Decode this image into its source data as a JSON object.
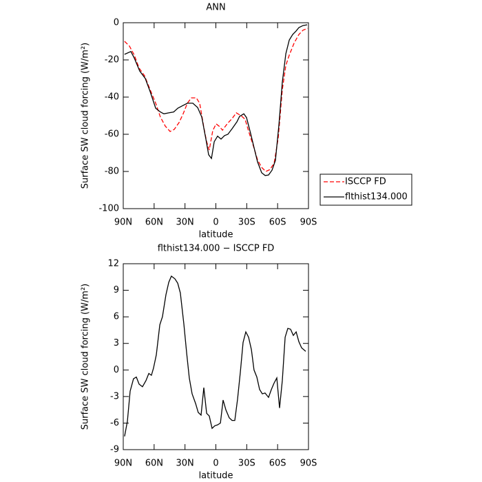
{
  "chart_data": [
    {
      "type": "line",
      "title": "ANN",
      "xlabel": "latitude",
      "ylabel": "Surface SW cloud forcing (W/m²)",
      "xlim": [
        90,
        -90
      ],
      "xticks": [
        {
          "value": 90,
          "label": "90N"
        },
        {
          "value": 60,
          "label": "60N"
        },
        {
          "value": 30,
          "label": "30N"
        },
        0,
        {
          "value": -30,
          "label": "30S"
        },
        {
          "value": -60,
          "label": "60S"
        },
        {
          "value": -90,
          "label": "90S"
        }
      ],
      "ylim": [
        -100,
        0
      ],
      "yticks": [
        -100,
        -80,
        -60,
        -40,
        -20,
        0
      ],
      "legend": "right",
      "series": [
        {
          "name": "ISCCP FD",
          "color": "#ff0000",
          "dashed": true,
          "x": [
            88.7,
            84,
            79.3,
            74.6,
            69.3,
            63.9,
            58.5,
            53.9,
            49.2,
            44.5,
            40.5,
            35.8,
            31.8,
            27.7,
            23.8,
            19.1,
            15.7,
            11.7,
            9,
            6.4,
            3,
            -0.3,
            -3.7,
            -6.4,
            -11,
            -15.8,
            -19.9,
            -24.4,
            -28.4,
            -32.5,
            -36.5,
            -40.5,
            -44.5,
            -48.5,
            -52.5,
            -56.6,
            -60.6,
            -64.6,
            -68,
            -71.3,
            -76,
            -80.7,
            -84.7,
            -89.3
          ],
          "values": [
            -10,
            -12.6,
            -17.4,
            -24.4,
            -28.5,
            -36,
            -43.3,
            -50.7,
            -55.6,
            -58.5,
            -57.4,
            -53.7,
            -49,
            -43.3,
            -40.4,
            -40.4,
            -43.3,
            -56.3,
            -64,
            -68.5,
            -58,
            -54.4,
            -55.9,
            -57.8,
            -54.4,
            -51.5,
            -48.5,
            -50,
            -51.9,
            -59.6,
            -66.3,
            -73.7,
            -77.8,
            -80,
            -79,
            -75.6,
            -61.9,
            -36,
            -23,
            -17.4,
            -11,
            -6.3,
            -4,
            -3
          ]
        },
        {
          "name": "flthist134.000",
          "color": "#000000",
          "dashed": false,
          "x": [
            88.7,
            82.6,
            79.3,
            74,
            68.6,
            63.9,
            58.5,
            53.9,
            50.5,
            45.8,
            41,
            37,
            31.8,
            27.7,
            22.4,
            17.7,
            13.7,
            9.7,
            7,
            4.3,
            1.6,
            -1.7,
            -5,
            -8.4,
            -11.7,
            -15.8,
            -20.5,
            -23,
            -27.2,
            -29.8,
            -33.8,
            -37.2,
            -40.5,
            -44.5,
            -47.9,
            -51.2,
            -54.6,
            -57.9,
            -61.3,
            -64.6,
            -68,
            -71.3,
            -74.7,
            -78,
            -80.7,
            -84.7,
            -88.7
          ],
          "values": [
            -17,
            -15.5,
            -19,
            -26,
            -30,
            -37,
            -46,
            -48,
            -49,
            -48.5,
            -48,
            -46,
            -44.5,
            -43.3,
            -43.3,
            -45.6,
            -50.7,
            -62.6,
            -71,
            -73,
            -64,
            -61,
            -62.6,
            -60.7,
            -60,
            -57,
            -53.3,
            -50.4,
            -49,
            -51,
            -59.6,
            -67.4,
            -74.8,
            -80.7,
            -82.2,
            -81.9,
            -79.3,
            -74,
            -54.8,
            -32,
            -16.7,
            -9.3,
            -6.3,
            -4.4,
            -2.6,
            -1.5,
            -1.1
          ]
        }
      ]
    },
    {
      "type": "line",
      "title": "flthist134.000 − ISCCP FD",
      "xlabel": "latitude",
      "ylabel": "Surface SW cloud forcing (W/m²)",
      "xlim": [
        90,
        -90
      ],
      "xticks": [
        {
          "value": 90,
          "label": "90N"
        },
        {
          "value": 60,
          "label": "60N"
        },
        {
          "value": 30,
          "label": "30N"
        },
        0,
        {
          "value": -30,
          "label": "30S"
        },
        {
          "value": -60,
          "label": "60S"
        },
        {
          "value": -90,
          "label": "90S"
        }
      ],
      "ylim": [
        -9,
        12
      ],
      "yticks": [
        -9,
        -6,
        -3,
        0,
        3,
        6,
        9,
        12
      ],
      "series": [
        {
          "color": "#000000",
          "dashed": false,
          "x": [
            88.7,
            86,
            83.3,
            80,
            77.3,
            74.6,
            71.3,
            67.9,
            65.2,
            62.6,
            60.6,
            57.9,
            54.5,
            51.9,
            48.5,
            45.8,
            43.2,
            39.8,
            37.1,
            34.5,
            31.1,
            28.4,
            25.8,
            23.1,
            19.7,
            17.1,
            14.4,
            11.7,
            9,
            6.4,
            3.7,
            1,
            -1.7,
            -4.4,
            -7,
            -9.7,
            -13,
            -15.7,
            -18.4,
            -21.1,
            -23.8,
            -26.4,
            -29.1,
            -31.8,
            -34.5,
            -37.1,
            -39.8,
            -42.5,
            -45.2,
            -47.8,
            -51.2,
            -53.9,
            -56.5,
            -59.2,
            -61.9,
            -64.6,
            -67.3,
            -69.9,
            -72.6,
            -75.3,
            -78,
            -80.6,
            -83.3,
            -87.3
          ],
          "values": [
            -7.5,
            -5.8,
            -2.4,
            -1,
            -0.8,
            -1.6,
            -1.9,
            -1.2,
            -0.4,
            -0.6,
            0.2,
            1.7,
            5.1,
            6,
            8.5,
            9.9,
            10.6,
            10.3,
            9.8,
            8.7,
            5.2,
            1.9,
            -0.9,
            -2.7,
            -3.8,
            -4.8,
            -5.1,
            -2,
            -4.9,
            -5.2,
            -6.6,
            -6.3,
            -6.2,
            -6,
            -3.4,
            -4.5,
            -5.4,
            -5.7,
            -5.7,
            -3.3,
            -0.2,
            3.1,
            4.3,
            3.7,
            2.3,
            0,
            -0.8,
            -2.2,
            -2.7,
            -2.6,
            -3.1,
            -2.2,
            -1.5,
            -0.9,
            -4.3,
            -1.2,
            3.7,
            4.7,
            4.6,
            3.9,
            4.3,
            3.2,
            2.5,
            2.1
          ]
        }
      ]
    }
  ]
}
